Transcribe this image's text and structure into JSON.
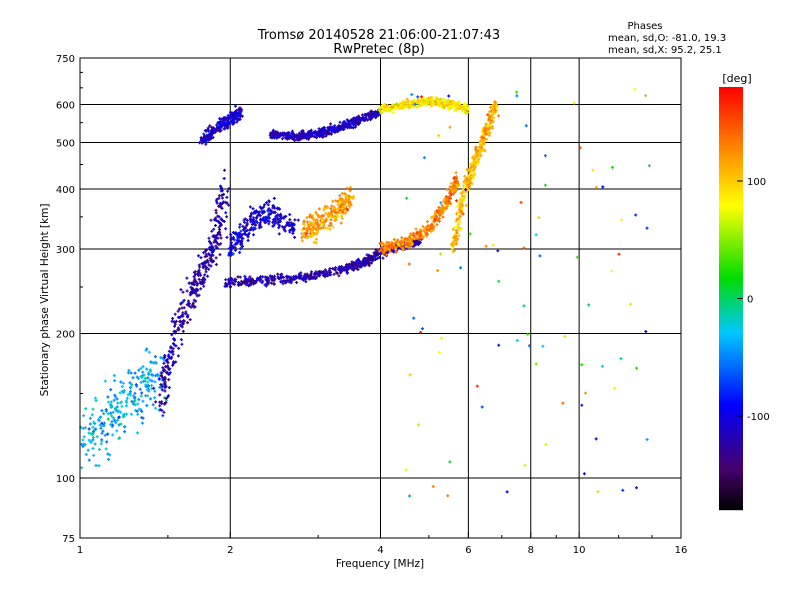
{
  "chart_data": {
    "type": "scatter",
    "title": "Tromsø 20140528 21:06:00-21:07:43",
    "subtitle": "RwPretec (8p)",
    "xlabel": "Frequency [MHz]",
    "ylabel": "Stationary phase Virtual Height [km]",
    "x_scale": "log",
    "y_scale": "log",
    "xlim": [
      1,
      16
    ],
    "ylim": [
      75,
      750
    ],
    "x_ticks": [
      "1",
      "2",
      "4",
      "6",
      "8",
      "10",
      "16"
    ],
    "y_ticks": [
      "75",
      "100",
      "200",
      "300",
      "400",
      "500",
      "600",
      "750"
    ],
    "grid": true,
    "stats": {
      "heading": "Phases",
      "line_o": "mean, sd,O: -81.0, 19.3",
      "line_x": "mean, sd,X:  95.2, 25.1"
    },
    "colorbar": {
      "label": "[deg]",
      "ticks": [
        "100",
        "0",
        "-100"
      ],
      "tick_values": [
        100,
        0,
        -100
      ],
      "range": [
        -180,
        180
      ]
    },
    "traces": [
      {
        "x": [
          1.0,
          1.15,
          1.3,
          1.45
        ],
        "y": [
          118,
          135,
          150,
          168
        ],
        "phase": -35,
        "spread": 0.13
      },
      {
        "x": [
          1.45,
          1.55,
          1.7,
          1.85,
          1.95
        ],
        "y": [
          140,
          200,
          250,
          300,
          400
        ],
        "phase": -120,
        "spread": 0.08
      },
      {
        "x": [
          1.95,
          2.3,
          2.8,
          3.3,
          3.7,
          4.0,
          4.4,
          4.8
        ],
        "y": [
          255,
          258,
          262,
          270,
          282,
          295,
          305,
          312
        ],
        "phase": -120,
        "spread": 0.02
      },
      {
        "x": [
          4.0,
          4.5,
          5.0,
          5.4,
          5.7
        ],
        "y": [
          300,
          310,
          330,
          370,
          420
        ],
        "phase": 130,
        "spread": 0.03
      },
      {
        "x": [
          2.4,
          2.7,
          3.0,
          3.3,
          3.6,
          4.0
        ],
        "y": [
          520,
          515,
          522,
          535,
          555,
          580
        ],
        "phase": -115,
        "spread": 0.02
      },
      {
        "x": [
          4.0,
          4.5,
          5.0,
          5.5,
          6.0
        ],
        "y": [
          585,
          600,
          610,
          600,
          590
        ],
        "phase": 90,
        "spread": 0.02
      },
      {
        "x": [
          5.6,
          5.9,
          6.2,
          6.5,
          6.8
        ],
        "y": [
          300,
          400,
          460,
          520,
          600
        ],
        "phase": 110,
        "spread": 0.04
      },
      {
        "x": [
          2.0,
          2.2,
          2.4,
          2.7
        ],
        "y": [
          300,
          340,
          360,
          330
        ],
        "phase": -105,
        "spread": 0.06
      },
      {
        "x": [
          2.8,
          3.0,
          3.3,
          3.5
        ],
        "y": [
          320,
          340,
          360,
          380
        ],
        "phase": 120,
        "spread": 0.06
      },
      {
        "x": [
          1.75,
          1.9,
          2.0,
          2.1
        ],
        "y": [
          505,
          540,
          560,
          580
        ],
        "phase": -110,
        "spread": 0.03
      }
    ]
  }
}
